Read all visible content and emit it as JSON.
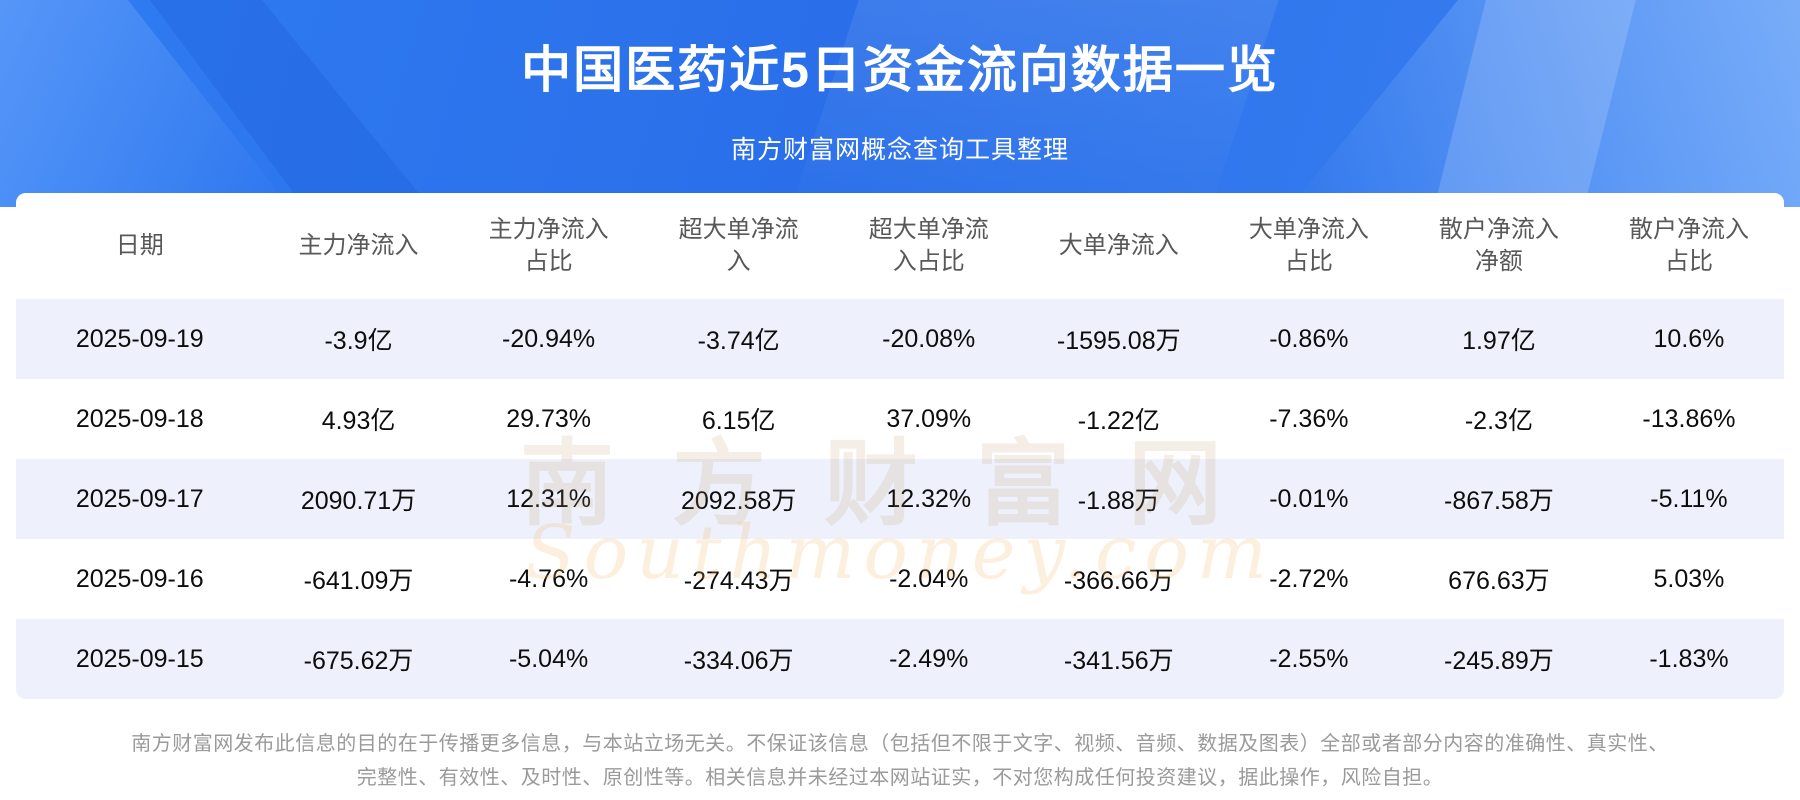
{
  "header": {
    "title": "中国医药近5日资金流向数据一览",
    "subtitle": "南方财富网概念查询工具整理"
  },
  "chart_data": {
    "type": "table",
    "title": "中国医药近5日资金流向数据一览",
    "columns": [
      "日期",
      "主力净流入",
      "主力净流入占比",
      "超大单净流入",
      "超大单净流入占比",
      "大单净流入",
      "大单净流入占比",
      "散户净流入净额",
      "散户净流入占比"
    ],
    "rows": [
      [
        "2025-09-19",
        "-3.9亿",
        "-20.94%",
        "-3.74亿",
        "-20.08%",
        "-1595.08万",
        "-0.86%",
        "1.97亿",
        "10.6%"
      ],
      [
        "2025-09-18",
        "4.93亿",
        "29.73%",
        "6.15亿",
        "37.09%",
        "-1.22亿",
        "-7.36%",
        "-2.3亿",
        "-13.86%"
      ],
      [
        "2025-09-17",
        "2090.71万",
        "12.31%",
        "2092.58万",
        "12.32%",
        "-1.88万",
        "-0.01%",
        "-867.58万",
        "-5.11%"
      ],
      [
        "2025-09-16",
        "-641.09万",
        "-4.76%",
        "-274.43万",
        "-2.04%",
        "-366.66万",
        "-2.72%",
        "676.63万",
        "5.03%"
      ],
      [
        "2025-09-15",
        "-675.62万",
        "-5.04%",
        "-334.06万",
        "-2.49%",
        "-341.56万",
        "-2.55%",
        "-245.89万",
        "-1.83%"
      ]
    ]
  },
  "watermark": {
    "cn": "南方财富网",
    "en": "Southmoney.com"
  },
  "footer": {
    "line1": "南方财富网发布此信息的目的在于传播更多信息，与本站立场无关。不保证该信息（包括但不限于文字、视频、音频、数据及图表）全部或者部分内容的准确性、真实性、",
    "line2": "完整性、有效性、及时性、原创性等。相关信息并未经过本网站证实，不对您构成任何投资建议，据此操作，风险自担。"
  },
  "colors": {
    "banner_blue": "#2f7cf2",
    "row_alt": "#eef1fb",
    "header_text": "#585858",
    "footer_text": "#9a9a9a"
  }
}
